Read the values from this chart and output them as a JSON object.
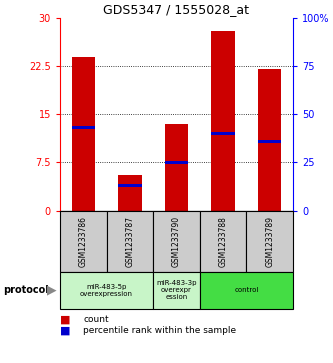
{
  "title": "GDS5347 / 1555028_at",
  "samples": [
    "GSM1233786",
    "GSM1233787",
    "GSM1233790",
    "GSM1233788",
    "GSM1233789"
  ],
  "red_values": [
    24.0,
    5.5,
    13.5,
    28.0,
    22.0
  ],
  "blue_pct": [
    43,
    13,
    25,
    40,
    36
  ],
  "ylim_left": [
    0,
    30
  ],
  "ylim_right": [
    0,
    100
  ],
  "yticks_left": [
    0,
    7.5,
    15,
    22.5,
    30
  ],
  "yticks_right": [
    0,
    25,
    50,
    75,
    100
  ],
  "ytick_labels_left": [
    "0",
    "7.5",
    "15",
    "22.5",
    "30"
  ],
  "ytick_labels_right": [
    "0",
    "25",
    "50",
    "75",
    "100%"
  ],
  "group_defs": [
    [
      0,
      2,
      "miR-483-5p\noverexpression",
      "#c8f5c8"
    ],
    [
      2,
      3,
      "miR-483-3p\noverexpr\nession",
      "#c8f5c8"
    ],
    [
      3,
      5,
      "control",
      "#44dd44"
    ]
  ],
  "bar_color": "#CC0000",
  "blue_color": "#0000CC",
  "bar_width": 0.5,
  "bg_color": "#cccccc",
  "plot_bg": "#ffffff",
  "label_count": "count",
  "label_pct": "percentile rank within the sample"
}
